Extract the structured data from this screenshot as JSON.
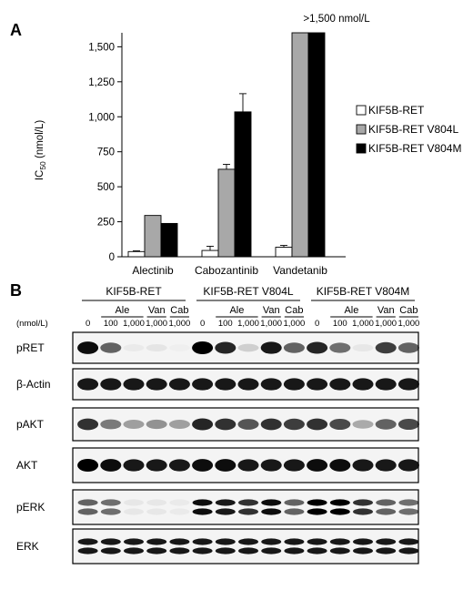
{
  "panels": {
    "a": "A",
    "b": "B"
  },
  "chart_data": {
    "type": "bar",
    "categories": [
      "Alectinib",
      "Cabozantinib",
      "Vandetanib"
    ],
    "series": [
      {
        "name": "KIF5B-RET",
        "values": [
          37,
          45,
          68
        ],
        "errors": [
          5,
          30,
          13
        ],
        "color": "#ffffff"
      },
      {
        "name": "KIF5B-RET V804L",
        "values": [
          295,
          625,
          1600
        ],
        "errors": [
          0,
          35,
          0
        ],
        "color": "#a8a8a8"
      },
      {
        "name": "KIF5B-RET V804M",
        "values": [
          238,
          1035,
          1600
        ],
        "errors": [
          0,
          130,
          0
        ],
        "color": "#000000"
      }
    ],
    "ylim": [
      0,
      1600
    ],
    "yticks": [
      "0",
      "250",
      "500",
      "750",
      "1,000",
      "1,250",
      "1,500"
    ],
    "ylabel_main": "IC",
    "ylabel_sub": "50",
    "ylabel_unit": " (nmol/L)",
    "annotation": ">1,500 nmol/L",
    "legend_position": "right",
    "grid": false
  },
  "blot": {
    "groups": [
      "KIF5B-RET",
      "KIF5B-RET V804L",
      "KIF5B-RET V804M"
    ],
    "drugs": [
      "Ale",
      "Van",
      "Cab"
    ],
    "unit": "(nmol/L)",
    "doses": [
      "0",
      "100",
      "1,000",
      "1,000",
      "1,000",
      "0",
      "100",
      "1,000",
      "1,000",
      "1,000",
      "0",
      "100",
      "1,000",
      "1,000",
      "1,000"
    ],
    "rows": [
      {
        "label": "pRET",
        "intensity": [
          0.95,
          0.6,
          0.04,
          0.06,
          0.02,
          1.0,
          0.85,
          0.15,
          0.9,
          0.6,
          0.85,
          0.55,
          0.05,
          0.75,
          0.6
        ],
        "style": "single"
      },
      {
        "label": "β-Actin",
        "intensity": [
          0.9,
          0.9,
          0.9,
          0.9,
          0.9,
          0.9,
          0.9,
          0.9,
          0.9,
          0.9,
          0.9,
          0.9,
          0.9,
          0.9,
          0.9
        ],
        "style": "single"
      },
      {
        "label": "pAKT",
        "intensity": [
          0.8,
          0.5,
          0.35,
          0.4,
          0.35,
          0.85,
          0.8,
          0.65,
          0.8,
          0.75,
          0.8,
          0.7,
          0.3,
          0.6,
          0.7
        ],
        "style": "single"
      },
      {
        "label": "AKT",
        "intensity": [
          1.0,
          0.95,
          0.9,
          0.9,
          0.9,
          0.95,
          0.95,
          0.9,
          0.9,
          0.9,
          0.95,
          0.95,
          0.9,
          0.9,
          0.9
        ],
        "style": "single"
      },
      {
        "label": "pERK",
        "intensity": [
          0.6,
          0.55,
          0.05,
          0.05,
          0.04,
          0.95,
          0.9,
          0.8,
          0.95,
          0.6,
          1.0,
          1.0,
          0.8,
          0.6,
          0.55
        ],
        "style": "double"
      },
      {
        "label": "ERK",
        "intensity": [
          0.9,
          0.9,
          0.9,
          0.9,
          0.9,
          0.9,
          0.9,
          0.9,
          0.9,
          0.9,
          0.9,
          0.9,
          0.9,
          0.9,
          0.9
        ],
        "style": "double"
      }
    ]
  }
}
